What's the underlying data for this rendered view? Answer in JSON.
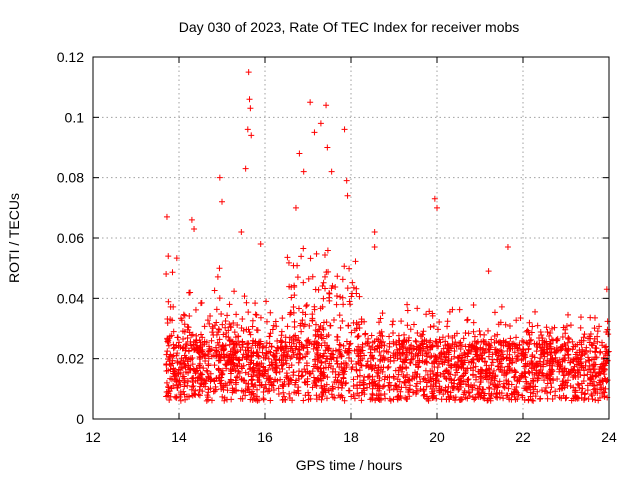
{
  "chart_data": {
    "type": "scatter",
    "title": "Day 030 of 2023, Rate Of TEC Index for receiver mobs",
    "xlabel": "GPS time / hours",
    "ylabel": "ROTI / TECUs",
    "xlim": [
      12,
      24
    ],
    "ylim": [
      0,
      0.12
    ],
    "xticks": [
      12,
      14,
      16,
      18,
      20,
      22,
      24
    ],
    "xtick_labels": [
      "12",
      "14",
      "16",
      "18",
      "20",
      "22",
      "24"
    ],
    "yticks": [
      0,
      0.02,
      0.04,
      0.06,
      0.08,
      0.1,
      0.12
    ],
    "ytick_labels": [
      "0",
      "0.02",
      "0.04",
      "0.06",
      "0.08",
      "0.1",
      "0.12"
    ],
    "grid": true,
    "marker": "+",
    "color": "#ff0000",
    "series": [
      {
        "name": "ROTI",
        "x_range": [
          13.7,
          24.0
        ],
        "baseline_band": [
          0.005,
          0.03
        ],
        "notable_points": [
          {
            "x": 13.72,
            "y": 0.067
          },
          {
            "x": 13.75,
            "y": 0.054
          },
          {
            "x": 14.3,
            "y": 0.066
          },
          {
            "x": 14.35,
            "y": 0.063
          },
          {
            "x": 14.95,
            "y": 0.08
          },
          {
            "x": 15.0,
            "y": 0.072
          },
          {
            "x": 15.45,
            "y": 0.062
          },
          {
            "x": 15.55,
            "y": 0.083
          },
          {
            "x": 15.62,
            "y": 0.115
          },
          {
            "x": 15.64,
            "y": 0.106
          },
          {
            "x": 15.66,
            "y": 0.103
          },
          {
            "x": 15.6,
            "y": 0.096
          },
          {
            "x": 15.68,
            "y": 0.094
          },
          {
            "x": 15.9,
            "y": 0.058
          },
          {
            "x": 16.72,
            "y": 0.07
          },
          {
            "x": 16.8,
            "y": 0.088
          },
          {
            "x": 16.9,
            "y": 0.082
          },
          {
            "x": 17.05,
            "y": 0.105
          },
          {
            "x": 17.15,
            "y": 0.095
          },
          {
            "x": 17.3,
            "y": 0.098
          },
          {
            "x": 17.42,
            "y": 0.104
          },
          {
            "x": 17.45,
            "y": 0.09
          },
          {
            "x": 17.55,
            "y": 0.082
          },
          {
            "x": 17.85,
            "y": 0.096
          },
          {
            "x": 17.9,
            "y": 0.079
          },
          {
            "x": 17.92,
            "y": 0.074
          },
          {
            "x": 18.55,
            "y": 0.062
          },
          {
            "x": 18.55,
            "y": 0.057
          },
          {
            "x": 19.95,
            "y": 0.073
          },
          {
            "x": 20.0,
            "y": 0.07
          },
          {
            "x": 21.65,
            "y": 0.057
          },
          {
            "x": 21.2,
            "y": 0.049
          },
          {
            "x": 23.95,
            "y": 0.043
          }
        ]
      }
    ]
  }
}
